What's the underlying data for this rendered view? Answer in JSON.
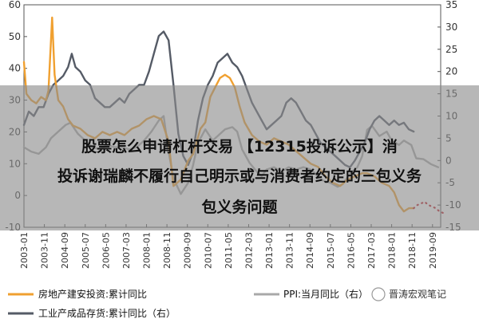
{
  "chart_data": {
    "type": "line",
    "x_ticks": [
      "2003-01",
      "2003-11",
      "2004-09",
      "2005-07",
      "2006-05",
      "2007-03",
      "2008-01",
      "2008-11",
      "2009-09",
      "2010-07",
      "2011-05",
      "2012-03",
      "2013-01",
      "2013-11",
      "2014-09",
      "2015-07",
      "2016-05",
      "2017-03",
      "2018-01",
      "2018-11",
      "2019-09"
    ],
    "y_left": {
      "range": [
        -10,
        60
      ],
      "ticks": [
        "-10",
        "0",
        "10",
        "20",
        "30",
        "40",
        "50",
        "60"
      ]
    },
    "y_right": {
      "range": [
        -15,
        35
      ],
      "ticks": [
        "-15",
        "-10",
        "-5",
        "0",
        "5",
        "10",
        "15",
        "20",
        "25",
        "30",
        "35"
      ]
    },
    "grid": false,
    "legend_position": "bottom",
    "series": [
      {
        "name": "房地产建安投资:累计同比",
        "axis": "left",
        "color": "#f0a030",
        "points": [
          [
            2003.0,
            42
          ],
          [
            2003.1,
            32
          ],
          [
            2003.3,
            30
          ],
          [
            2003.5,
            29
          ],
          [
            2003.7,
            31
          ],
          [
            2003.9,
            30
          ],
          [
            2004.0,
            33
          ],
          [
            2004.15,
            56
          ],
          [
            2004.25,
            38
          ],
          [
            2004.4,
            30
          ],
          [
            2004.6,
            28
          ],
          [
            2004.8,
            24
          ],
          [
            2005.0,
            22
          ],
          [
            2005.3,
            21
          ],
          [
            2005.6,
            19
          ],
          [
            2005.9,
            18
          ],
          [
            2006.2,
            20
          ],
          [
            2006.5,
            19
          ],
          [
            2006.8,
            20
          ],
          [
            2007.1,
            19
          ],
          [
            2007.4,
            21
          ],
          [
            2007.7,
            22
          ],
          [
            2008.0,
            24
          ],
          [
            2008.3,
            25
          ],
          [
            2008.6,
            24
          ],
          [
            2008.9,
            17
          ],
          [
            2009.1,
            3
          ],
          [
            2009.4,
            5
          ],
          [
            2009.7,
            11
          ],
          [
            2009.9,
            13
          ],
          [
            2010.2,
            21
          ],
          [
            2010.4,
            23
          ],
          [
            2010.6,
            31
          ],
          [
            2010.8,
            34
          ],
          [
            2011.0,
            37
          ],
          [
            2011.2,
            38
          ],
          [
            2011.4,
            37
          ],
          [
            2011.6,
            34
          ],
          [
            2011.8,
            28
          ],
          [
            2012.0,
            23
          ],
          [
            2012.3,
            19
          ],
          [
            2012.6,
            17
          ],
          [
            2012.9,
            16
          ],
          [
            2013.2,
            18
          ],
          [
            2013.5,
            17
          ],
          [
            2013.8,
            16
          ],
          [
            2014.1,
            14
          ],
          [
            2014.4,
            12
          ],
          [
            2014.7,
            10
          ],
          [
            2015.0,
            9
          ],
          [
            2015.3,
            6
          ],
          [
            2015.6,
            4
          ],
          [
            2015.9,
            3
          ],
          [
            2016.2,
            5
          ],
          [
            2016.5,
            6
          ],
          [
            2016.8,
            7
          ],
          [
            2017.0,
            7
          ],
          [
            2017.3,
            6
          ],
          [
            2017.6,
            4
          ],
          [
            2017.9,
            3
          ],
          [
            2018.1,
            1
          ],
          [
            2018.3,
            -3
          ],
          [
            2018.5,
            -5
          ],
          [
            2018.7,
            -4
          ],
          [
            2018.9,
            -4
          ]
        ]
      },
      {
        "name": "PPI:当月同比",
        "axis": "right",
        "color": "#a8a8a8",
        "points": [
          [
            2003.0,
            3
          ],
          [
            2003.3,
            2
          ],
          [
            2003.6,
            1.5
          ],
          [
            2003.9,
            3
          ],
          [
            2004.1,
            5
          ],
          [
            2004.4,
            6.5
          ],
          [
            2004.7,
            8
          ],
          [
            2004.9,
            8.5
          ],
          [
            2005.2,
            6
          ],
          [
            2005.5,
            4.5
          ],
          [
            2005.8,
            3
          ],
          [
            2006.1,
            2.5
          ],
          [
            2006.4,
            3.5
          ],
          [
            2006.7,
            3
          ],
          [
            2007.0,
            3
          ],
          [
            2007.3,
            2.5
          ],
          [
            2007.6,
            3
          ],
          [
            2007.9,
            4.5
          ],
          [
            2008.2,
            6.5
          ],
          [
            2008.5,
            9
          ],
          [
            2008.7,
            10
          ],
          [
            2008.9,
            2
          ],
          [
            2009.1,
            -4
          ],
          [
            2009.4,
            -7.5
          ],
          [
            2009.7,
            -5
          ],
          [
            2009.9,
            -1
          ],
          [
            2010.1,
            4
          ],
          [
            2010.4,
            7
          ],
          [
            2010.7,
            4.5
          ],
          [
            2010.9,
            5.5
          ],
          [
            2011.2,
            7
          ],
          [
            2011.5,
            7.5
          ],
          [
            2011.7,
            6.5
          ],
          [
            2011.9,
            2.5
          ],
          [
            2012.2,
            -0.5
          ],
          [
            2012.5,
            -2.5
          ],
          [
            2012.7,
            -3.5
          ],
          [
            2012.9,
            -2
          ],
          [
            2013.2,
            -1.5
          ],
          [
            2013.5,
            -2.5
          ],
          [
            2013.8,
            -1.5
          ],
          [
            2014.1,
            -2
          ],
          [
            2014.4,
            -1.5
          ],
          [
            2014.7,
            -2
          ],
          [
            2014.9,
            -3
          ],
          [
            2015.2,
            -4.5
          ],
          [
            2015.5,
            -5
          ],
          [
            2015.8,
            -5.9
          ],
          [
            2016.0,
            -5.3
          ],
          [
            2016.3,
            -3
          ],
          [
            2016.6,
            -1.5
          ],
          [
            2016.8,
            1
          ],
          [
            2017.0,
            6.9
          ],
          [
            2017.2,
            7.8
          ],
          [
            2017.5,
            5.5
          ],
          [
            2017.8,
            6.5
          ],
          [
            2018.0,
            4.5
          ],
          [
            2018.3,
            3.5
          ],
          [
            2018.5,
            4.5
          ],
          [
            2018.8,
            3.5
          ],
          [
            2019.0,
            0.5
          ],
          [
            2019.3,
            0.3
          ],
          [
            2019.6,
            -0.8
          ],
          [
            2019.9,
            -1.5
          ]
        ]
      },
      {
        "name": "工业产成品存货:累计同比（右）",
        "axis": "right",
        "color": "#555b66",
        "points": [
          [
            2003.0,
            8
          ],
          [
            2003.2,
            11
          ],
          [
            2003.4,
            10
          ],
          [
            2003.6,
            12
          ],
          [
            2003.8,
            12
          ],
          [
            2004.0,
            15
          ],
          [
            2004.2,
            17
          ],
          [
            2004.4,
            18
          ],
          [
            2004.6,
            19
          ],
          [
            2004.8,
            21
          ],
          [
            2004.95,
            24
          ],
          [
            2005.1,
            21
          ],
          [
            2005.3,
            20
          ],
          [
            2005.5,
            18
          ],
          [
            2005.7,
            17
          ],
          [
            2005.9,
            14
          ],
          [
            2006.1,
            13
          ],
          [
            2006.3,
            12
          ],
          [
            2006.5,
            12
          ],
          [
            2006.7,
            13
          ],
          [
            2006.9,
            14
          ],
          [
            2007.1,
            13
          ],
          [
            2007.3,
            15
          ],
          [
            2007.5,
            16
          ],
          [
            2007.7,
            17
          ],
          [
            2007.9,
            17
          ],
          [
            2008.1,
            20
          ],
          [
            2008.3,
            24
          ],
          [
            2008.5,
            28
          ],
          [
            2008.7,
            29
          ],
          [
            2008.9,
            27
          ],
          [
            2009.1,
            17
          ],
          [
            2009.3,
            6
          ],
          [
            2009.5,
            1
          ],
          [
            2009.7,
            -1
          ],
          [
            2009.9,
            2
          ],
          [
            2010.1,
            9
          ],
          [
            2010.3,
            14
          ],
          [
            2010.5,
            17
          ],
          [
            2010.7,
            19
          ],
          [
            2010.9,
            22
          ],
          [
            2011.1,
            23
          ],
          [
            2011.3,
            24
          ],
          [
            2011.5,
            22
          ],
          [
            2011.7,
            21
          ],
          [
            2011.9,
            19
          ],
          [
            2012.1,
            16
          ],
          [
            2012.3,
            13
          ],
          [
            2012.5,
            11
          ],
          [
            2012.7,
            9
          ],
          [
            2012.9,
            7
          ],
          [
            2013.1,
            8
          ],
          [
            2013.3,
            9
          ],
          [
            2013.5,
            10
          ],
          [
            2013.7,
            13
          ],
          [
            2013.9,
            14
          ],
          [
            2014.1,
            13
          ],
          [
            2014.3,
            11
          ],
          [
            2014.5,
            9
          ],
          [
            2014.7,
            8
          ],
          [
            2014.9,
            6
          ],
          [
            2015.1,
            4
          ],
          [
            2015.3,
            3
          ],
          [
            2015.5,
            2
          ],
          [
            2015.7,
            1
          ],
          [
            2015.9,
            0
          ],
          [
            2016.1,
            -1
          ],
          [
            2016.3,
            -1.5
          ],
          [
            2016.5,
            0
          ],
          [
            2016.7,
            2
          ],
          [
            2016.9,
            4
          ],
          [
            2017.1,
            7
          ],
          [
            2017.3,
            9
          ],
          [
            2017.5,
            10
          ],
          [
            2017.7,
            9
          ],
          [
            2017.9,
            8
          ],
          [
            2018.1,
            9
          ],
          [
            2018.3,
            8
          ],
          [
            2018.5,
            8.5
          ],
          [
            2018.7,
            7
          ],
          [
            2018.9,
            6.5
          ]
        ]
      },
      {
        "name": "",
        "axis": "left",
        "color": "#c0202a",
        "style": "dotted",
        "points": [
          [
            2018.9,
            -4
          ],
          [
            2019.05,
            -3
          ],
          [
            2019.2,
            -2.5
          ],
          [
            2019.35,
            -2
          ],
          [
            2019.5,
            -3
          ],
          [
            2019.65,
            -3.5
          ],
          [
            2019.8,
            -4
          ],
          [
            2019.95,
            -5
          ],
          [
            2020.1,
            -5.5
          ]
        ]
      }
    ]
  },
  "legend": [
    {
      "label": "房地产建安投资:累计同比",
      "color": "#f0a030",
      "style": "solid"
    },
    {
      "label": "PPI:当月同比（右）",
      "color": "#a8a8a8",
      "style": "solid"
    },
    {
      "label": "工业产成品存货:累计同比（右）",
      "color": "#555b66",
      "style": "solid"
    }
  ],
  "watermark": "晋涛宏观笔记",
  "overlay": {
    "line1": "股票怎么申请杠杆交易 【12315投诉公示】消",
    "line2": "投诉谢瑞麟不履行自己明示或与消费者约定的三包义务",
    "line3": "包义务问题"
  }
}
